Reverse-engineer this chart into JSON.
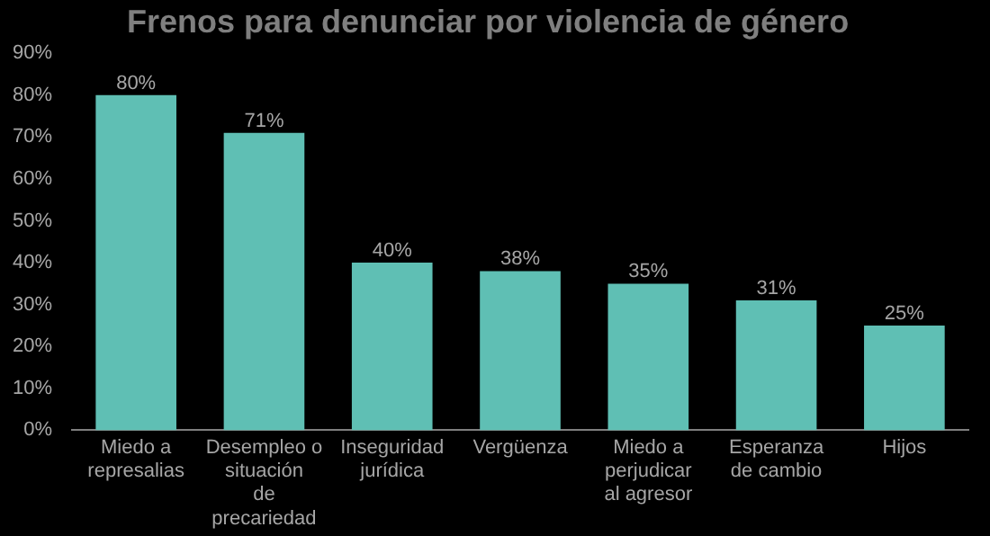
{
  "chart_data": {
    "type": "bar",
    "title": "Frenos para denunciar por violencia de género",
    "categories": [
      "Miedo a represalias",
      "Desempleo o situación de precariedad",
      "Inseguridad jurídica",
      "Vergüenza",
      "Miedo a perjudicar al agresor",
      "Esperanza de cambio",
      "Hijos"
    ],
    "values": [
      80,
      71,
      40,
      38,
      35,
      31,
      25
    ],
    "value_labels": [
      "80%",
      "71%",
      "40%",
      "38%",
      "35%",
      "31%",
      "25%"
    ],
    "color": "#5fbfb4",
    "ylim": [
      0,
      90
    ],
    "yticks": [
      {
        "value": 0,
        "label": "0%"
      },
      {
        "value": 10,
        "label": "10%"
      },
      {
        "value": 20,
        "label": "20%"
      },
      {
        "value": 30,
        "label": "30%"
      },
      {
        "value": 40,
        "label": "40%"
      },
      {
        "value": 50,
        "label": "50%"
      },
      {
        "value": 60,
        "label": "60%"
      },
      {
        "value": 70,
        "label": "70%"
      },
      {
        "value": 80,
        "label": "80%"
      },
      {
        "value": 90,
        "label": "90%"
      }
    ],
    "grid": false,
    "legend": false
  }
}
